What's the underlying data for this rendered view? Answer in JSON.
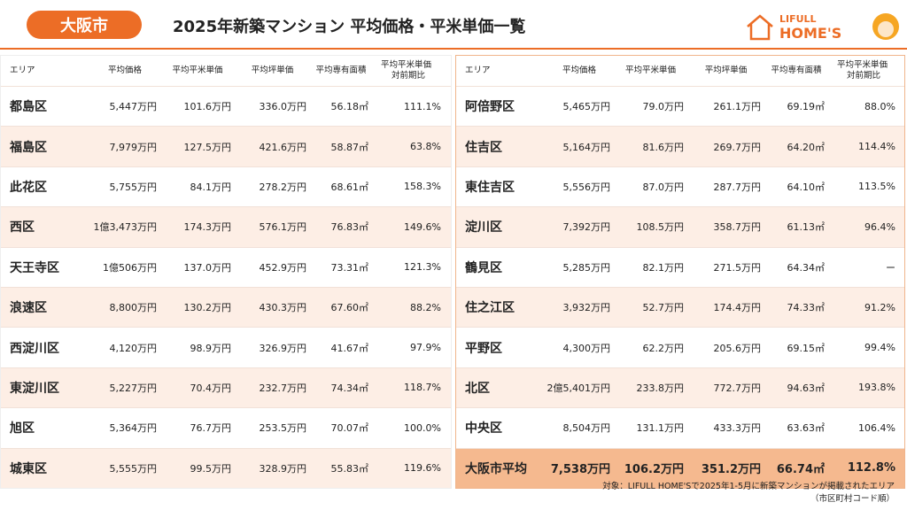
{
  "header": {
    "badge": "大阪市",
    "title": "2025年新築マンション 平均価格・平米単価一覧",
    "logo": {
      "line1": "LIFULL",
      "line2": "HOME'S"
    }
  },
  "left_table": {
    "headers": [
      "エリア",
      "平均価格",
      "平均平米単価",
      "平均坪単価",
      "平均専有面積",
      [
        "平均平米単価",
        "対前期比"
      ]
    ],
    "rows": [
      [
        "都島区",
        "5,447万円",
        "101.6万円",
        "336.0万円",
        "56.18㎡",
        "111.1%"
      ],
      [
        "福島区",
        "7,979万円",
        "127.5万円",
        "421.6万円",
        "58.87㎡",
        "63.8%"
      ],
      [
        "此花区",
        "5,755万円",
        "84.1万円",
        "278.2万円",
        "68.61㎡",
        "158.3%"
      ],
      [
        "西区",
        "1億3,473万円",
        "174.3万円",
        "576.1万円",
        "76.83㎡",
        "149.6%"
      ],
      [
        "天王寺区",
        "1億506万円",
        "137.0万円",
        "452.9万円",
        "73.31㎡",
        "121.3%"
      ],
      [
        "浪速区",
        "8,800万円",
        "130.2万円",
        "430.3万円",
        "67.60㎡",
        "88.2%"
      ],
      [
        "西淀川区",
        "4,120万円",
        "98.9万円",
        "326.9万円",
        "41.67㎡",
        "97.9%"
      ],
      [
        "東淀川区",
        "5,227万円",
        "70.4万円",
        "232.7万円",
        "74.34㎡",
        "118.7%"
      ],
      [
        "旭区",
        "5,364万円",
        "76.7万円",
        "253.5万円",
        "70.07㎡",
        "100.0%"
      ],
      [
        "城東区",
        "5,555万円",
        "99.5万円",
        "328.9万円",
        "55.83㎡",
        "119.6%"
      ]
    ]
  },
  "right_table": {
    "headers": [
      "エリア",
      "平均価格",
      "平均平米単価",
      "平均坪単価",
      "平均専有面積",
      [
        "平均平米単価",
        "対前期比"
      ]
    ],
    "rows": [
      [
        "阿倍野区",
        "5,465万円",
        "79.0万円",
        "261.1万円",
        "69.19㎡",
        "88.0%"
      ],
      [
        "住吉区",
        "5,164万円",
        "81.6万円",
        "269.7万円",
        "64.20㎡",
        "114.4%"
      ],
      [
        "東住吉区",
        "5,556万円",
        "87.0万円",
        "287.7万円",
        "64.10㎡",
        "113.5%"
      ],
      [
        "淀川区",
        "7,392万円",
        "108.5万円",
        "358.7万円",
        "61.13㎡",
        "96.4%"
      ],
      [
        "鶴見区",
        "5,285万円",
        "82.1万円",
        "271.5万円",
        "64.34㎡",
        "ー"
      ],
      [
        "住之江区",
        "3,932万円",
        "52.7万円",
        "174.4万円",
        "74.33㎡",
        "91.2%"
      ],
      [
        "平野区",
        "4,300万円",
        "62.2万円",
        "205.6万円",
        "69.15㎡",
        "99.4%"
      ],
      [
        "北区",
        "2億5,401万円",
        "233.8万円",
        "772.7万円",
        "94.63㎡",
        "193.8%"
      ],
      [
        "中央区",
        "8,504万円",
        "131.1万円",
        "433.3万円",
        "63.63㎡",
        "106.4%"
      ],
      [
        "大阪市平均",
        "7,538万円",
        "106.2万円",
        "351.2万円",
        "66.74㎡",
        "112.8%"
      ]
    ]
  },
  "footnote": [
    "対象：LIFULL HOME'Sで2025年1-5月に新築マンションが掲載されたエリア",
    "（市区町村コード順）"
  ]
}
